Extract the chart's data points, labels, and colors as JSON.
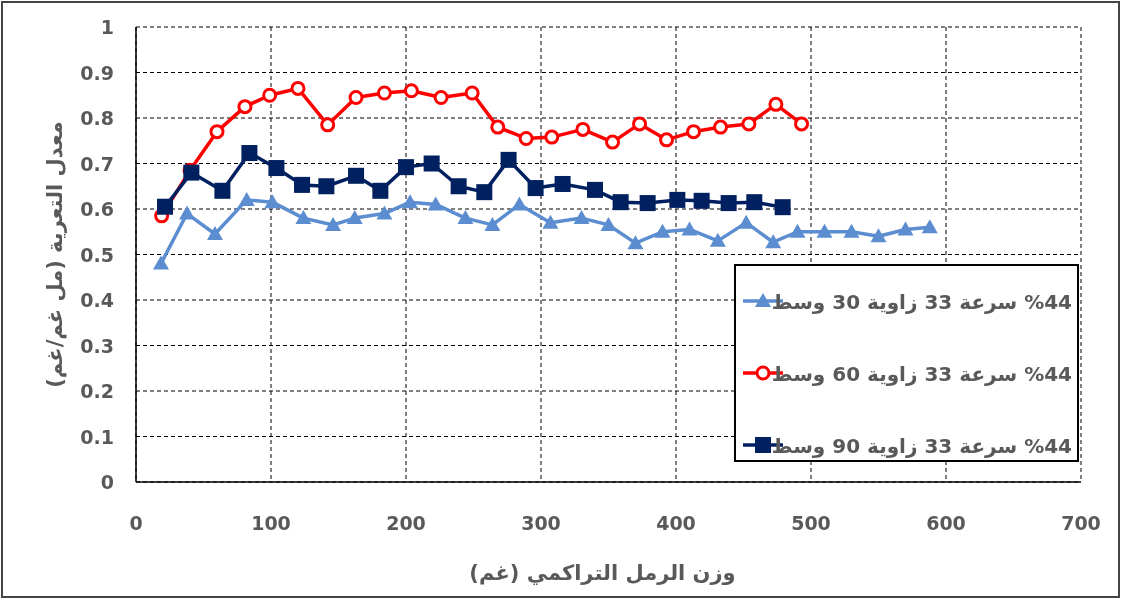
{
  "chart_data": {
    "type": "line",
    "xlabel": "وزن الرمل التراكمي (غم)",
    "ylabel": "معدل التعرية (مل غم/غم)",
    "xlim": [
      0,
      700
    ],
    "xticks": [
      0,
      100,
      200,
      300,
      400,
      500,
      600,
      700
    ],
    "ylim": [
      0,
      1
    ],
    "yticks": [
      0,
      0.1,
      0.2,
      0.3,
      0.4,
      0.5,
      0.6,
      0.7,
      0.8,
      0.9,
      1
    ],
    "grid": true,
    "legend": "bottom right",
    "series": [
      {
        "name": "%44 سرعة 33 زاوية 30 وسط",
        "color": "#5b8dd0",
        "marker": "triangle",
        "x": [
          18.5,
          37.8,
          58.5,
          82,
          101,
          124,
          146,
          162,
          184,
          203,
          222,
          244,
          264,
          284,
          307,
          330,
          350,
          370,
          390,
          410,
          431,
          452,
          472,
          490,
          510,
          530,
          550,
          570,
          588
        ],
        "values": [
          0.48,
          0.59,
          0.545,
          0.62,
          0.615,
          0.58,
          0.565,
          0.58,
          0.59,
          0.615,
          0.61,
          0.58,
          0.565,
          0.61,
          0.57,
          0.58,
          0.565,
          0.525,
          0.55,
          0.555,
          0.53,
          0.57,
          0.527,
          0.55,
          0.55,
          0.55,
          0.54,
          0.555,
          0.56
        ]
      },
      {
        "name": "%44 سرعة 33 زاوية 60 وسط",
        "color": "#ff0000",
        "marker": "circle",
        "x": [
          19,
          40,
          60,
          80.7,
          99,
          120,
          142,
          163,
          184,
          204,
          226,
          249,
          268,
          289,
          308,
          331,
          353,
          373,
          393,
          413,
          433,
          454,
          474,
          493
        ],
        "values": [
          0.585,
          0.685,
          0.77,
          0.825,
          0.85,
          0.865,
          0.785,
          0.845,
          0.855,
          0.86,
          0.845,
          0.855,
          0.78,
          0.755,
          0.758,
          0.775,
          0.747,
          0.787,
          0.752,
          0.77,
          0.78,
          0.787,
          0.83,
          0.787
        ]
      },
      {
        "name": "%44 سرعة 33 زاوية 90 وسط",
        "color": "#002060",
        "marker": "square",
        "x": [
          21.5,
          41,
          64,
          84,
          104,
          123,
          141,
          163,
          181,
          200,
          219,
          239,
          258,
          276,
          296,
          316,
          340,
          359,
          379,
          401,
          419,
          439,
          458,
          479
        ],
        "values": [
          0.605,
          0.68,
          0.64,
          0.723,
          0.69,
          0.653,
          0.65,
          0.673,
          0.64,
          0.692,
          0.7,
          0.65,
          0.637,
          0.708,
          0.646,
          0.655,
          0.642,
          0.615,
          0.613,
          0.62,
          0.618,
          0.613,
          0.615,
          0.604
        ]
      }
    ]
  }
}
